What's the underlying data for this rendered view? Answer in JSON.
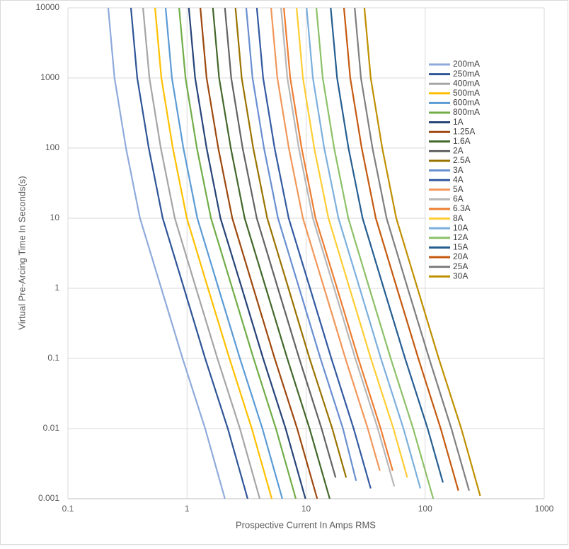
{
  "chart_data": {
    "type": "line",
    "x_label": "Prospective Current In Amps RMS",
    "y_label": "Virtual Pre-Arcing Time In Seconds(s)",
    "log_x": true,
    "log_y": true,
    "grid": true,
    "legend": "right",
    "xlim": [
      0.1,
      1000
    ],
    "ylim": [
      0.001,
      10000
    ],
    "xticks": [
      0.1,
      1,
      10,
      100,
      1000
    ],
    "yticks": [
      0.001,
      0.01,
      0.1,
      1,
      10,
      100,
      1000,
      10000
    ],
    "series": [
      {
        "name": "200mA",
        "color": "#8faadc",
        "x": [
          0.218,
          0.246,
          0.307,
          0.403,
          0.608,
          0.918,
          1.42,
          2.08
        ],
        "values": [
          10000,
          1000,
          100,
          10,
          1,
          0.1,
          0.01,
          0.001
        ]
      },
      {
        "name": "250mA",
        "color": "#2f5597",
        "x": [
          0.338,
          0.382,
          0.477,
          0.625,
          0.943,
          1.42,
          2.2,
          3.23
        ],
        "values": [
          10000,
          1000,
          100,
          10,
          1,
          0.1,
          0.01,
          0.001
        ]
      },
      {
        "name": "400mA",
        "color": "#a5a5a5",
        "x": [
          0.427,
          0.483,
          0.602,
          0.79,
          1.19,
          1.8,
          2.78,
          4.08
        ],
        "values": [
          10000,
          1000,
          100,
          10,
          1,
          0.1,
          0.01,
          0.001
        ]
      },
      {
        "name": "500mA",
        "color": "#ffc000",
        "x": [
          0.539,
          0.609,
          0.76,
          0.997,
          1.5,
          2.27,
          3.5,
          5.15
        ],
        "values": [
          10000,
          1000,
          100,
          10,
          1,
          0.1,
          0.01,
          0.001
        ]
      },
      {
        "name": "600mA",
        "color": "#5b9bd5",
        "x": [
          0.661,
          0.747,
          0.932,
          1.22,
          1.84,
          2.78,
          4.3,
          6.31
        ],
        "values": [
          10000,
          1000,
          100,
          10,
          1,
          0.1,
          0.01,
          0.001
        ]
      },
      {
        "name": "800mA",
        "color": "#70ad47",
        "x": [
          0.859,
          0.971,
          1.21,
          1.59,
          2.4,
          3.62,
          5.58,
          8.2
        ],
        "values": [
          10000,
          1000,
          100,
          10,
          1,
          0.1,
          0.01,
          0.001
        ]
      },
      {
        "name": "1A",
        "color": "#264478",
        "x": [
          1.035,
          1.17,
          1.46,
          1.91,
          2.89,
          4.36,
          6.73,
          9.88
        ],
        "values": [
          10000,
          1000,
          100,
          10,
          1,
          0.1,
          0.01,
          0.001
        ]
      },
      {
        "name": "1.25A",
        "color": "#9e480e",
        "x": [
          1.295,
          1.46,
          1.83,
          2.4,
          3.61,
          5.45,
          8.42,
          12.4
        ],
        "values": [
          10000,
          1000,
          100,
          10,
          1,
          0.1,
          0.01,
          0.001
        ]
      },
      {
        "name": "1.6A",
        "color": "#43682b",
        "x": [
          1.65,
          1.86,
          2.33,
          3.05,
          4.6,
          6.95,
          10.7,
          15.8
        ],
        "values": [
          10000,
          1000,
          100,
          10,
          1,
          0.1,
          0.01,
          0.001
        ]
      },
      {
        "name": "2A",
        "color": "#636363",
        "x": [
          2.08,
          2.35,
          2.93,
          3.85,
          5.8,
          8.76,
          13.5,
          17.7
        ],
        "values": [
          10000,
          1000,
          100,
          10,
          1,
          0.1,
          0.01,
          0.002
        ]
      },
      {
        "name": "2.5A",
        "color": "#997300",
        "x": [
          2.55,
          2.88,
          3.6,
          4.72,
          7.11,
          10.7,
          16.6,
          21.7
        ],
        "values": [
          10000,
          1000,
          100,
          10,
          1,
          0.1,
          0.01,
          0.002
        ]
      },
      {
        "name": "3A",
        "color": "#698ed0",
        "x": [
          3.14,
          3.55,
          4.43,
          5.81,
          8.76,
          13.2,
          20.4,
          26.3
        ],
        "values": [
          10000,
          1000,
          100,
          10,
          1,
          0.1,
          0.01,
          0.0018
        ]
      },
      {
        "name": "4A",
        "color": "#335aa1",
        "x": [
          3.86,
          4.36,
          5.44,
          7.14,
          10.8,
          16.3,
          25.1,
          34.9
        ],
        "values": [
          10000,
          1000,
          100,
          10,
          1,
          0.1,
          0.01,
          0.0014
        ]
      },
      {
        "name": "5A",
        "color": "#f1975a",
        "x": [
          5.08,
          5.74,
          7.16,
          9.4,
          14.2,
          21.4,
          33,
          41.7
        ],
        "values": [
          10000,
          1000,
          100,
          10,
          1,
          0.1,
          0.01,
          0.0025
        ]
      },
      {
        "name": "6A",
        "color": "#b7b7b7",
        "x": [
          6.16,
          6.96,
          8.69,
          11.4,
          17.2,
          25.9,
          40,
          55
        ],
        "values": [
          10000,
          1000,
          100,
          10,
          1,
          0.1,
          0.01,
          0.0015
        ]
      },
      {
        "name": "6.3A",
        "color": "#ed7d31",
        "x": [
          6.51,
          7.36,
          9.18,
          12,
          18.2,
          27.4,
          42.3,
          53.4
        ],
        "values": [
          10000,
          1000,
          100,
          10,
          1,
          0.1,
          0.01,
          0.0025
        ]
      },
      {
        "name": "8A",
        "color": "#ffcd33",
        "x": [
          8.32,
          9.4,
          11.7,
          15.4,
          23.2,
          35,
          54.1,
          70.8
        ],
        "values": [
          10000,
          1000,
          100,
          10,
          1,
          0.1,
          0.01,
          0.002
        ]
      },
      {
        "name": "10A",
        "color": "#7cafdd",
        "x": [
          10.1,
          11.4,
          14.2,
          18.7,
          28.2,
          42.5,
          65.7,
          91.2
        ],
        "values": [
          10000,
          1000,
          100,
          10,
          1,
          0.1,
          0.01,
          0.0014
        ]
      },
      {
        "name": "12A",
        "color": "#8cc168",
        "x": [
          12.2,
          13.8,
          17.2,
          22.6,
          34,
          51.4,
          79.3,
          117
        ],
        "values": [
          10000,
          1000,
          100,
          10,
          1,
          0.1,
          0.01,
          0.001
        ]
      },
      {
        "name": "15A",
        "color": "#255e91",
        "x": [
          16.1,
          18.2,
          22.7,
          29.8,
          44.9,
          67.8,
          105,
          141
        ],
        "values": [
          10000,
          1000,
          100,
          10,
          1,
          0.1,
          0.01,
          0.0017
        ]
      },
      {
        "name": "20A",
        "color": "#c55a11",
        "x": [
          20.8,
          23.5,
          29.3,
          38.5,
          58,
          87.6,
          135,
          190
        ],
        "values": [
          10000,
          1000,
          100,
          10,
          1,
          0.1,
          0.01,
          0.0013
        ]
      },
      {
        "name": "25A",
        "color": "#7f7f7f",
        "x": [
          25.6,
          28.9,
          36.1,
          47.4,
          71.4,
          108,
          166,
          234
        ],
        "values": [
          10000,
          1000,
          100,
          10,
          1,
          0.1,
          0.01,
          0.0013
        ]
      },
      {
        "name": "30A",
        "color": "#bf9000",
        "x": [
          30.9,
          34.9,
          43.6,
          57.2,
          86.2,
          130,
          201,
          290
        ],
        "values": [
          10000,
          1000,
          100,
          10,
          1,
          0.1,
          0.01,
          0.0011
        ]
      }
    ]
  }
}
